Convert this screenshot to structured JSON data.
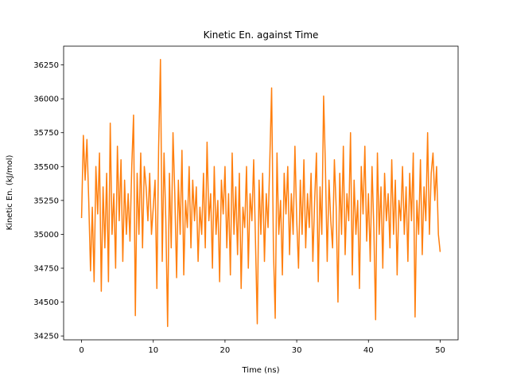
{
  "chart_data": {
    "type": "line",
    "title": "Kinetic En. against Time",
    "x_label": "Time (ns)",
    "y_label": "Kinetic En. (kJ/mol)",
    "color": "#ff7f0e",
    "xlim": [
      -2.5,
      52.5
    ],
    "xticks": [
      0,
      10,
      20,
      30,
      40,
      50
    ],
    "ylim": [
      34221.5,
      36388.5
    ],
    "yticks": [
      34250,
      34500,
      34750,
      35000,
      35250,
      35500,
      35750,
      36000,
      36250
    ],
    "x": [
      0,
      0.25,
      0.5,
      0.75,
      1,
      1.25,
      1.5,
      1.75,
      2,
      2.25,
      2.5,
      2.75,
      3,
      3.25,
      3.5,
      3.75,
      4,
      4.25,
      4.5,
      4.75,
      5,
      5.25,
      5.5,
      5.75,
      6,
      6.25,
      6.5,
      6.75,
      7,
      7.25,
      7.5,
      7.75,
      8,
      8.25,
      8.5,
      8.75,
      9,
      9.25,
      9.5,
      9.75,
      10,
      10.25,
      10.5,
      10.75,
      11,
      11.25,
      11.5,
      11.75,
      12,
      12.25,
      12.5,
      12.75,
      13,
      13.25,
      13.5,
      13.75,
      14,
      14.25,
      14.5,
      14.75,
      15,
      15.25,
      15.5,
      15.75,
      16,
      16.25,
      16.5,
      16.75,
      17,
      17.25,
      17.5,
      17.75,
      18,
      18.25,
      18.5,
      18.75,
      19,
      19.25,
      19.5,
      19.75,
      20,
      20.25,
      20.5,
      20.75,
      21,
      21.25,
      21.5,
      21.75,
      22,
      22.25,
      22.5,
      22.75,
      23,
      23.25,
      23.5,
      23.75,
      24,
      24.25,
      24.5,
      24.75,
      25,
      25.25,
      25.5,
      25.75,
      26,
      26.25,
      26.5,
      26.75,
      27,
      27.25,
      27.5,
      27.75,
      28,
      28.25,
      28.5,
      28.75,
      29,
      29.25,
      29.5,
      29.75,
      30,
      30.25,
      30.5,
      30.75,
      31,
      31.25,
      31.5,
      31.75,
      32,
      32.25,
      32.5,
      32.75,
      33,
      33.25,
      33.5,
      33.75,
      34,
      34.25,
      34.5,
      34.75,
      35,
      35.25,
      35.5,
      35.75,
      36,
      36.25,
      36.5,
      36.75,
      37,
      37.25,
      37.5,
      37.75,
      38,
      38.25,
      38.5,
      38.75,
      39,
      39.25,
      39.5,
      39.75,
      40,
      40.25,
      40.5,
      40.75,
      41,
      41.25,
      41.5,
      41.75,
      42,
      42.25,
      42.5,
      42.75,
      43,
      43.25,
      43.5,
      43.75,
      44,
      44.25,
      44.5,
      44.75,
      45,
      45.25,
      45.5,
      45.75,
      46,
      46.25,
      46.5,
      46.75,
      47,
      47.25,
      47.5,
      47.75,
      48,
      48.25,
      48.5,
      48.75,
      49,
      49.25,
      49.5,
      49.75,
      50
    ],
    "values": [
      35120,
      35730,
      35400,
      35700,
      35250,
      34730,
      35200,
      34650,
      35500,
      35150,
      35600,
      34580,
      35350,
      34900,
      35450,
      34650,
      35820,
      35000,
      35300,
      34750,
      35650,
      35100,
      35550,
      34800,
      35400,
      35000,
      35300,
      34950,
      35500,
      35880,
      34400,
      35450,
      35000,
      35600,
      34900,
      35500,
      35350,
      35100,
      35450,
      35000,
      35200,
      35400,
      34600,
      35650,
      36290,
      34800,
      35600,
      35100,
      34320,
      35450,
      34900,
      35750,
      35300,
      34680,
      35400,
      35000,
      35620,
      34700,
      35250,
      35050,
      35500,
      34900,
      35400,
      35100,
      35350,
      34800,
      35200,
      35000,
      35450,
      34900,
      35680,
      35100,
      35300,
      34750,
      35500,
      35000,
      35250,
      34650,
      35400,
      35150,
      35500,
      34900,
      35300,
      34700,
      35600,
      35000,
      35350,
      34850,
      35450,
      34600,
      35200,
      35050,
      35500,
      34750,
      35300,
      35100,
      35550,
      34950,
      34340,
      35400,
      35000,
      35450,
      34800,
      35300,
      35050,
      35550,
      36080,
      34900,
      34380,
      35600,
      35000,
      35250,
      34700,
      35450,
      35150,
      35500,
      34850,
      35300,
      35000,
      35650,
      35100,
      34750,
      35400,
      35000,
      35550,
      34900,
      35300,
      35050,
      35450,
      34800,
      35250,
      35600,
      34650,
      35350,
      35000,
      36020,
      35500,
      34800,
      35400,
      35100,
      34900,
      35550,
      35200,
      34500,
      35450,
      35000,
      35650,
      34850,
      35300,
      35100,
      35750,
      34700,
      35400,
      35000,
      35250,
      34600,
      35500,
      35150,
      35650,
      34950,
      35300,
      34800,
      35500,
      35050,
      34370,
      35600,
      35000,
      35350,
      34750,
      35450,
      35100,
      35300,
      34900,
      35550,
      35000,
      35400,
      34700,
      35250,
      35100,
      35500,
      35000,
      35350,
      34800,
      35450,
      35100,
      35600,
      34390,
      35250,
      35000,
      35550,
      34850,
      35350,
      35100,
      35750,
      35000,
      35450,
      35600,
      35250,
      35500,
      35000,
      34870
    ]
  }
}
